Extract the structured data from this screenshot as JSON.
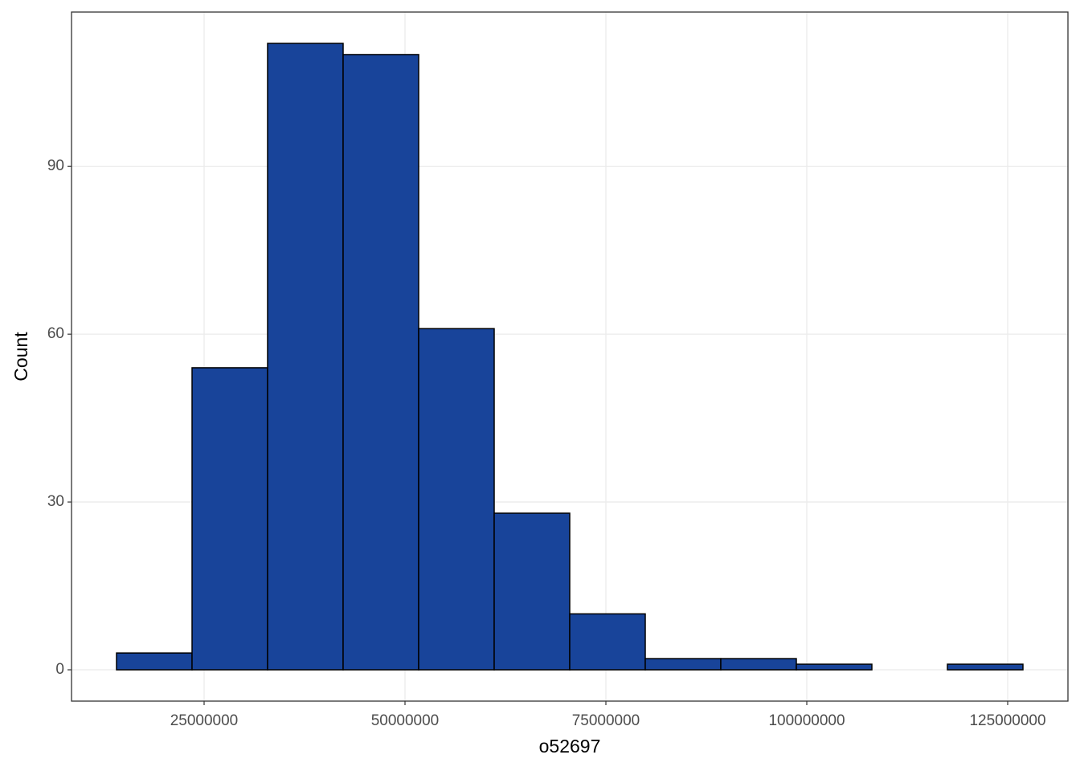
{
  "chart_data": {
    "type": "histogram",
    "x_label": "o52697",
    "y_label": "Count",
    "bins": [
      14100000,
      23500000,
      32900000,
      42300000,
      51700000,
      61100000,
      70500000,
      79900000,
      89300000,
      98700000,
      108100000,
      117500000,
      126900000
    ],
    "values": [
      3,
      54,
      112,
      110,
      61,
      28,
      10,
      2,
      2,
      1,
      0,
      1
    ],
    "color": "#18449a",
    "edge_color": "#000000",
    "xlim": [
      8500000,
      132500000
    ],
    "xticks": [
      25000000,
      50000000,
      75000000,
      100000000,
      125000000
    ],
    "ylim": [
      -5.6,
      117.6
    ],
    "yticks": [
      0,
      30,
      60,
      90
    ],
    "grid": true
  }
}
